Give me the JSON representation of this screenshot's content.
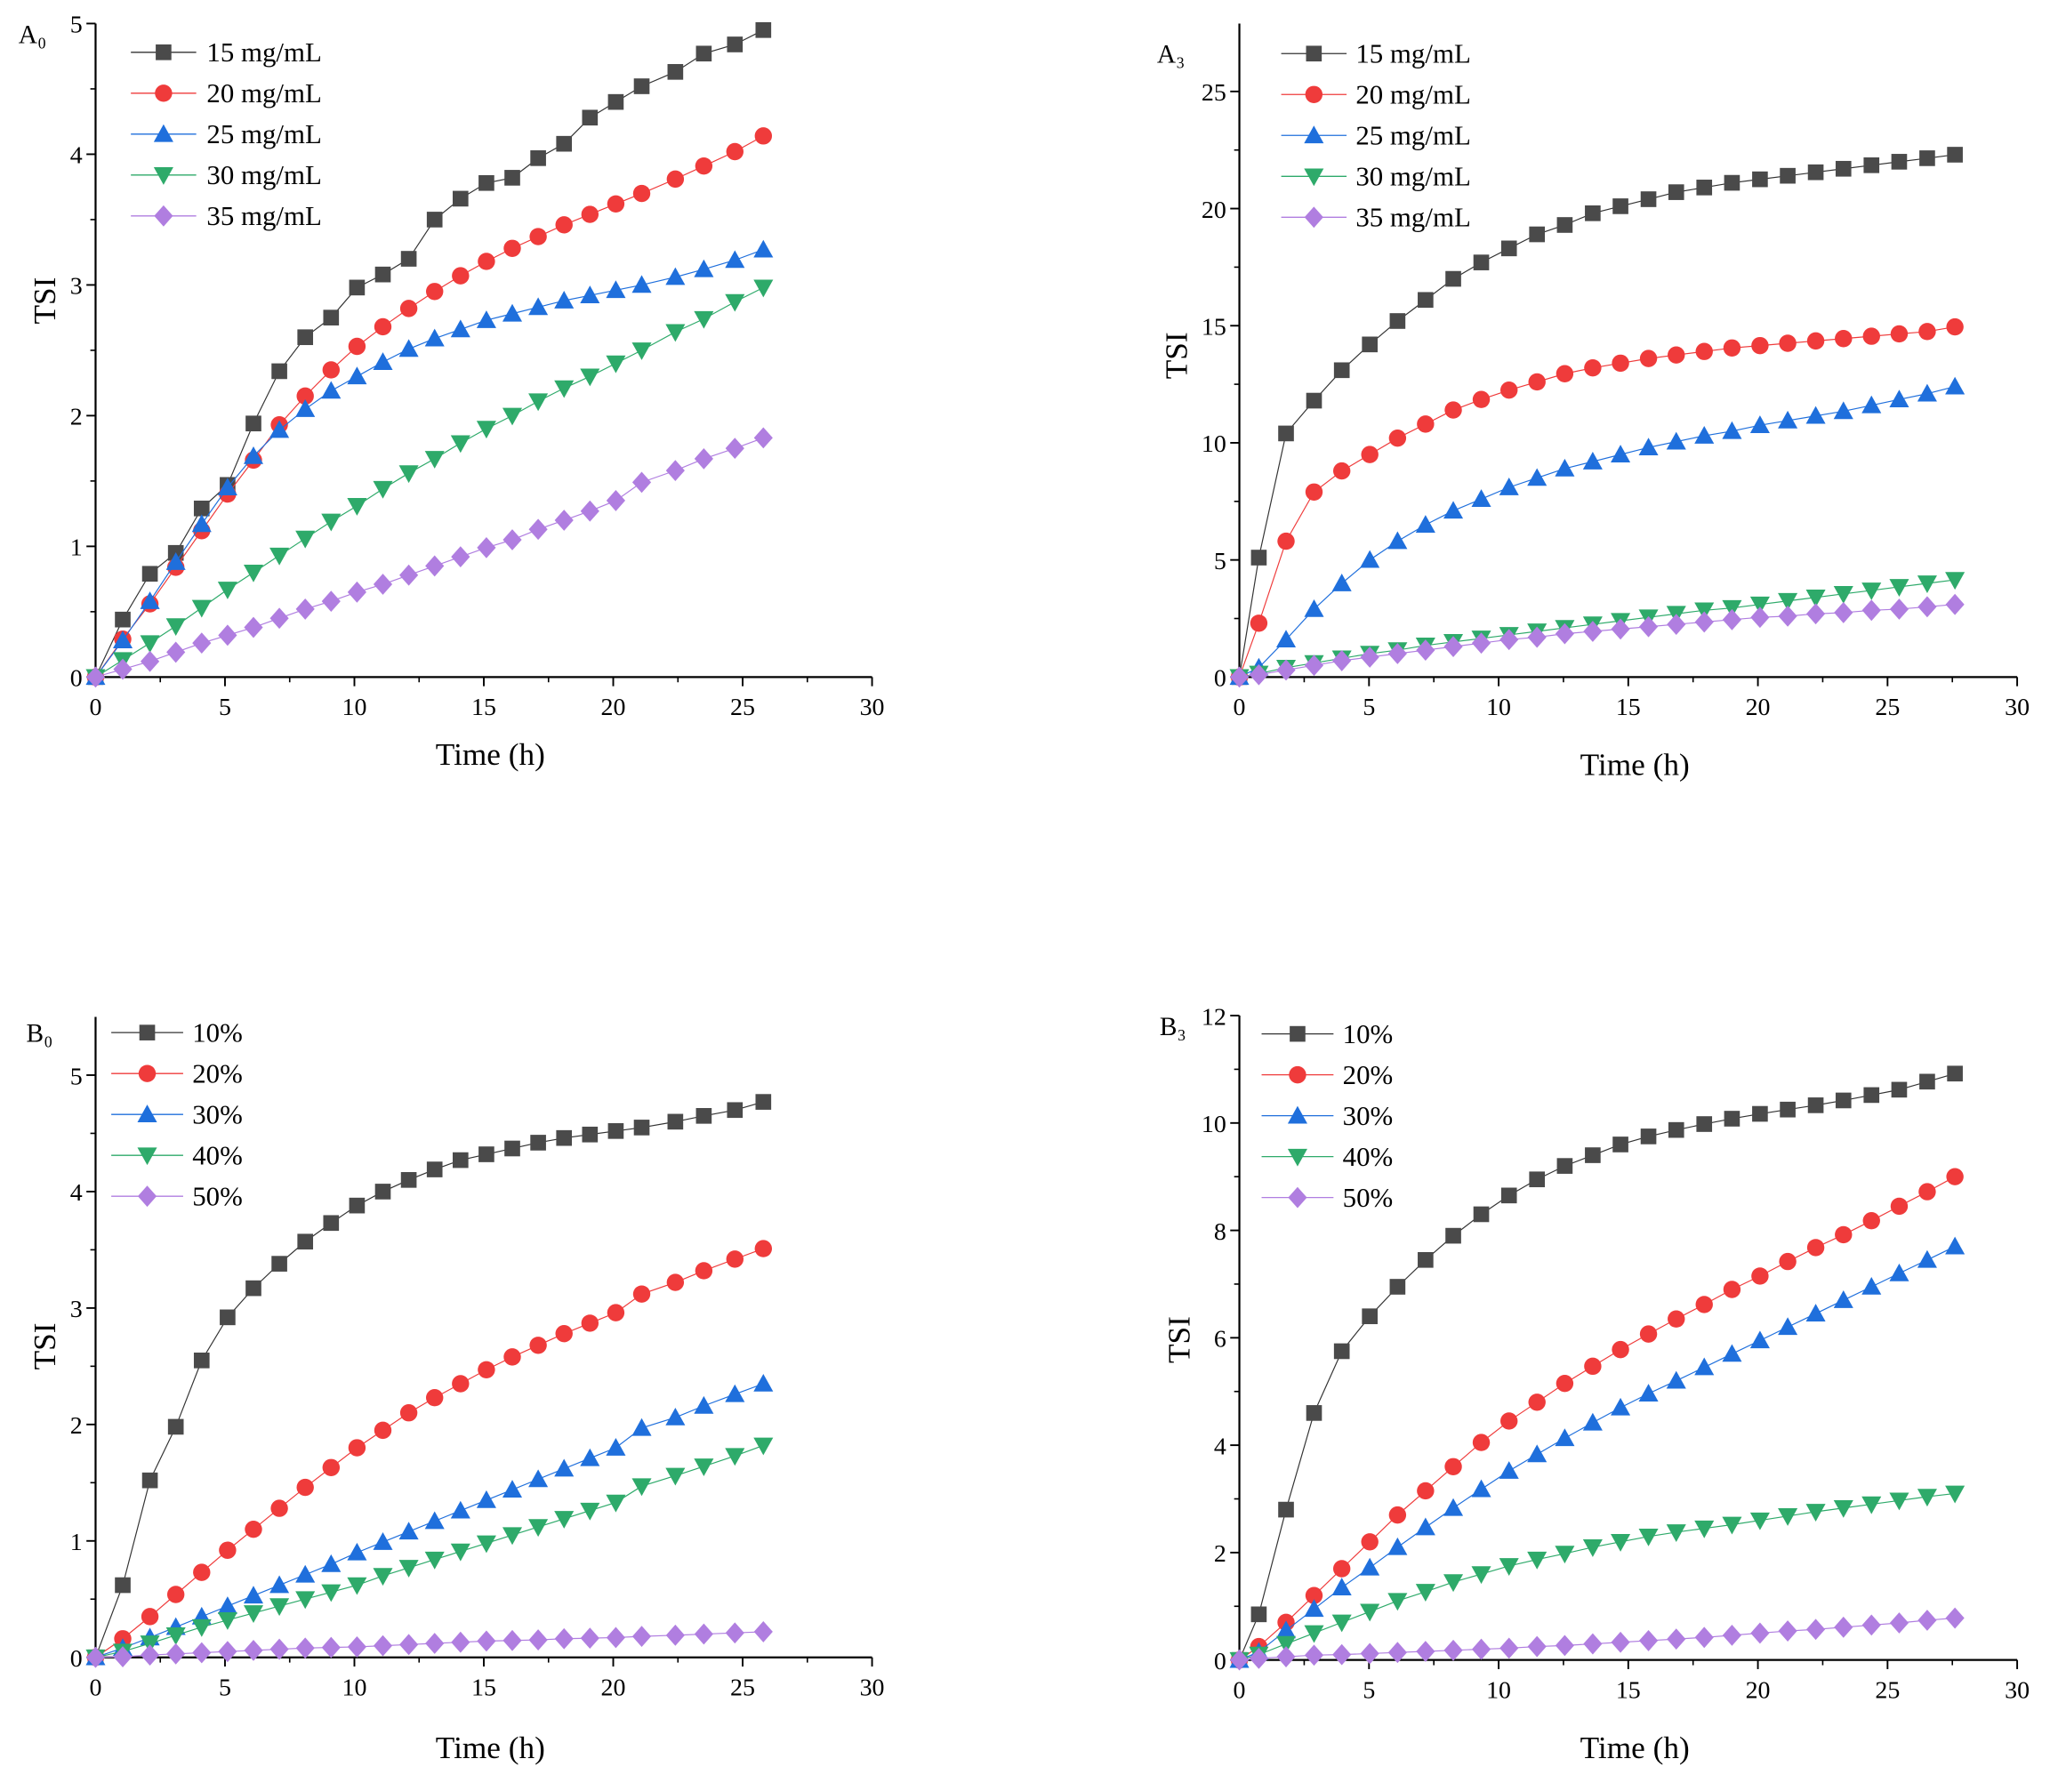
{
  "chart_data": [
    {
      "type": "line",
      "panel_label": "A₀",
      "xlabel": "Time (h)",
      "ylabel": "TSI",
      "xlim": [
        0,
        30
      ],
      "ylim": [
        0,
        5
      ],
      "xticks": [
        0,
        5,
        10,
        15,
        20,
        25,
        30
      ],
      "yticks": [
        0,
        1,
        2,
        3,
        4,
        5
      ],
      "legend_position": "top-left",
      "x": [
        0,
        1.05,
        2.1,
        3.1,
        4.1,
        5.1,
        6.1,
        7.1,
        8.1,
        9.1,
        10.1,
        11.1,
        12.1,
        13.1,
        14.1,
        15.1,
        16.1,
        17.1,
        18.1,
        19.1,
        20.1,
        21.1,
        22.4,
        23.5,
        24.7,
        25.8
      ],
      "series": [
        {
          "name": "15 mg/mL",
          "values": [
            0,
            0.44,
            0.79,
            0.95,
            1.29,
            1.47,
            1.94,
            2.34,
            2.6,
            2.75,
            2.98,
            3.08,
            3.2,
            3.5,
            3.66,
            3.78,
            3.82,
            3.97,
            4.08,
            4.28,
            4.4,
            4.52,
            4.63,
            4.77,
            4.84,
            4.95
          ]
        },
        {
          "name": "20 mg/mL",
          "values": [
            0,
            0.29,
            0.56,
            0.84,
            1.12,
            1.4,
            1.66,
            1.93,
            2.15,
            2.35,
            2.53,
            2.68,
            2.82,
            2.95,
            3.07,
            3.18,
            3.28,
            3.37,
            3.46,
            3.54,
            3.62,
            3.7,
            3.81,
            3.91,
            4.02,
            4.14
          ]
        },
        {
          "name": "25 mg/mL",
          "values": [
            0,
            0.28,
            0.58,
            0.88,
            1.17,
            1.45,
            1.69,
            1.89,
            2.05,
            2.19,
            2.3,
            2.41,
            2.51,
            2.59,
            2.66,
            2.73,
            2.78,
            2.83,
            2.88,
            2.92,
            2.96,
            3.0,
            3.06,
            3.12,
            3.19,
            3.27
          ]
        },
        {
          "name": "30 mg/mL",
          "values": [
            0,
            0.13,
            0.26,
            0.39,
            0.53,
            0.67,
            0.8,
            0.93,
            1.06,
            1.19,
            1.31,
            1.44,
            1.56,
            1.67,
            1.79,
            1.9,
            2.0,
            2.11,
            2.21,
            2.3,
            2.4,
            2.5,
            2.64,
            2.74,
            2.87,
            2.98
          ]
        },
        {
          "name": "35 mg/mL",
          "values": [
            0,
            0.06,
            0.12,
            0.19,
            0.26,
            0.32,
            0.38,
            0.45,
            0.52,
            0.58,
            0.65,
            0.71,
            0.78,
            0.85,
            0.92,
            0.99,
            1.05,
            1.13,
            1.2,
            1.27,
            1.35,
            1.49,
            1.58,
            1.67,
            1.75,
            1.83
          ]
        }
      ]
    },
    {
      "type": "line",
      "panel_label": "A₃",
      "xlabel": "Time (h)",
      "ylabel": "TSI",
      "xlim": [
        0,
        30
      ],
      "ylim": [
        0,
        27.9
      ],
      "xticks": [
        0,
        5,
        10,
        15,
        20,
        25,
        30
      ],
      "yticks": [
        0,
        5,
        10,
        15,
        20,
        25
      ],
      "legend_position": "top-left",
      "x": [
        0,
        0.75,
        1.8,
        2.88,
        3.95,
        5.03,
        6.1,
        7.18,
        8.25,
        9.33,
        10.4,
        11.48,
        12.55,
        13.63,
        14.7,
        15.78,
        16.85,
        17.93,
        19.0,
        20.08,
        21.15,
        22.23,
        23.3,
        24.38,
        25.45,
        26.53,
        27.6
      ],
      "series": [
        {
          "name": "15 mg/mL",
          "values": [
            0,
            5.1,
            10.4,
            11.8,
            13.1,
            14.2,
            15.2,
            16.1,
            17.0,
            17.7,
            18.3,
            18.9,
            19.3,
            19.8,
            20.1,
            20.4,
            20.7,
            20.9,
            21.1,
            21.25,
            21.4,
            21.55,
            21.7,
            21.85,
            22.0,
            22.15,
            22.3
          ]
        },
        {
          "name": "20 mg/mL",
          "values": [
            0,
            2.3,
            5.8,
            7.9,
            8.8,
            9.5,
            10.2,
            10.8,
            11.4,
            11.85,
            12.25,
            12.6,
            12.95,
            13.2,
            13.4,
            13.6,
            13.75,
            13.9,
            14.05,
            14.15,
            14.25,
            14.35,
            14.45,
            14.55,
            14.65,
            14.75,
            14.95
          ]
        },
        {
          "name": "25 mg/mL",
          "values": [
            0,
            0.4,
            1.6,
            2.9,
            4.0,
            5.0,
            5.8,
            6.5,
            7.1,
            7.6,
            8.1,
            8.5,
            8.9,
            9.2,
            9.5,
            9.8,
            10.05,
            10.3,
            10.5,
            10.75,
            10.95,
            11.15,
            11.35,
            11.6,
            11.85,
            12.1,
            12.4
          ]
        },
        {
          "name": "30 mg/mL",
          "values": [
            0,
            0.15,
            0.4,
            0.6,
            0.8,
            1.0,
            1.15,
            1.35,
            1.5,
            1.65,
            1.8,
            1.95,
            2.1,
            2.25,
            2.4,
            2.55,
            2.7,
            2.85,
            2.95,
            3.1,
            3.25,
            3.4,
            3.55,
            3.7,
            3.85,
            4.0,
            4.15
          ]
        },
        {
          "name": "35 mg/mL",
          "values": [
            0,
            0.1,
            0.3,
            0.5,
            0.7,
            0.85,
            1.0,
            1.15,
            1.3,
            1.45,
            1.6,
            1.7,
            1.85,
            1.95,
            2.05,
            2.15,
            2.25,
            2.35,
            2.45,
            2.55,
            2.6,
            2.7,
            2.75,
            2.85,
            2.9,
            3.0,
            3.1
          ]
        }
      ]
    },
    {
      "type": "line",
      "panel_label": "B₀",
      "xlabel": "Time (h)",
      "ylabel": "TSI",
      "xlim": [
        0,
        30
      ],
      "ylim": [
        0,
        5.5
      ],
      "xticks": [
        0,
        5,
        10,
        15,
        20,
        25,
        30
      ],
      "yticks": [
        0,
        1,
        2,
        3,
        4,
        5
      ],
      "legend_position": "top-left",
      "x": [
        0,
        1.05,
        2.1,
        3.1,
        4.1,
        5.1,
        6.1,
        7.1,
        8.1,
        9.1,
        10.1,
        11.1,
        12.1,
        13.1,
        14.1,
        15.1,
        16.1,
        17.1,
        18.1,
        19.1,
        20.1,
        21.1,
        22.4,
        23.5,
        24.7,
        25.8
      ],
      "series": [
        {
          "name": "10%",
          "values": [
            0,
            0.62,
            1.52,
            1.98,
            2.55,
            2.92,
            3.17,
            3.38,
            3.57,
            3.73,
            3.88,
            4.0,
            4.1,
            4.19,
            4.27,
            4.32,
            4.37,
            4.42,
            4.46,
            4.49,
            4.52,
            4.55,
            4.6,
            4.65,
            4.7,
            4.77
          ]
        },
        {
          "name": "20%",
          "values": [
            0,
            0.16,
            0.35,
            0.54,
            0.73,
            0.92,
            1.1,
            1.28,
            1.46,
            1.63,
            1.8,
            1.95,
            2.1,
            2.23,
            2.35,
            2.47,
            2.58,
            2.68,
            2.78,
            2.87,
            2.96,
            3.12,
            3.22,
            3.32,
            3.42,
            3.51
          ]
        },
        {
          "name": "30%",
          "values": [
            0,
            0.08,
            0.17,
            0.26,
            0.35,
            0.44,
            0.53,
            0.62,
            0.71,
            0.8,
            0.9,
            0.99,
            1.08,
            1.17,
            1.26,
            1.35,
            1.44,
            1.53,
            1.62,
            1.71,
            1.8,
            1.97,
            2.06,
            2.16,
            2.26,
            2.35
          ]
        },
        {
          "name": "40%",
          "values": [
            0,
            0.05,
            0.12,
            0.19,
            0.26,
            0.32,
            0.38,
            0.44,
            0.5,
            0.56,
            0.62,
            0.7,
            0.77,
            0.84,
            0.91,
            0.98,
            1.05,
            1.12,
            1.19,
            1.26,
            1.33,
            1.47,
            1.56,
            1.64,
            1.73,
            1.82
          ]
        },
        {
          "name": "50%",
          "values": [
            0,
            0.005,
            0.02,
            0.03,
            0.04,
            0.05,
            0.06,
            0.07,
            0.08,
            0.085,
            0.09,
            0.1,
            0.11,
            0.12,
            0.13,
            0.14,
            0.145,
            0.15,
            0.16,
            0.165,
            0.17,
            0.18,
            0.19,
            0.2,
            0.21,
            0.22
          ]
        }
      ]
    },
    {
      "type": "line",
      "panel_label": "B₃",
      "xlabel": "Time (h)",
      "ylabel": "TSI",
      "xlim": [
        0,
        30
      ],
      "ylim": [
        0,
        12
      ],
      "xticks": [
        0,
        5,
        10,
        15,
        20,
        25,
        30
      ],
      "yticks": [
        0,
        2,
        4,
        6,
        8,
        10,
        12
      ],
      "legend_position": "top-left",
      "x": [
        0,
        0.75,
        1.8,
        2.88,
        3.95,
        5.03,
        6.1,
        7.18,
        8.25,
        9.33,
        10.4,
        11.48,
        12.55,
        13.63,
        14.7,
        15.78,
        16.85,
        17.93,
        19.0,
        20.08,
        21.15,
        22.23,
        23.3,
        24.38,
        25.45,
        26.53,
        27.6
      ],
      "series": [
        {
          "name": "10%",
          "values": [
            0,
            0.85,
            2.8,
            4.6,
            5.75,
            6.4,
            6.95,
            7.45,
            7.9,
            8.3,
            8.65,
            8.95,
            9.2,
            9.4,
            9.6,
            9.75,
            9.87,
            9.98,
            10.08,
            10.17,
            10.25,
            10.33,
            10.42,
            10.52,
            10.62,
            10.77,
            10.92
          ]
        },
        {
          "name": "20%",
          "values": [
            0,
            0.25,
            0.7,
            1.2,
            1.7,
            2.2,
            2.7,
            3.15,
            3.6,
            4.05,
            4.45,
            4.8,
            5.15,
            5.47,
            5.78,
            6.07,
            6.35,
            6.62,
            6.9,
            7.15,
            7.42,
            7.68,
            7.92,
            8.18,
            8.45,
            8.72,
            9.0
          ]
        },
        {
          "name": "30%",
          "values": [
            0,
            0.15,
            0.55,
            0.95,
            1.35,
            1.72,
            2.1,
            2.47,
            2.83,
            3.18,
            3.52,
            3.83,
            4.13,
            4.42,
            4.7,
            4.96,
            5.2,
            5.45,
            5.7,
            5.95,
            6.2,
            6.45,
            6.7,
            6.95,
            7.2,
            7.45,
            7.7
          ]
        },
        {
          "name": "40%",
          "values": [
            0,
            0.1,
            0.3,
            0.5,
            0.7,
            0.9,
            1.1,
            1.27,
            1.45,
            1.6,
            1.75,
            1.87,
            1.98,
            2.1,
            2.2,
            2.3,
            2.38,
            2.45,
            2.52,
            2.6,
            2.68,
            2.76,
            2.83,
            2.9,
            2.97,
            3.04,
            3.1
          ]
        },
        {
          "name": "50%",
          "values": [
            0,
            0.03,
            0.06,
            0.09,
            0.1,
            0.12,
            0.14,
            0.16,
            0.18,
            0.2,
            0.22,
            0.25,
            0.27,
            0.3,
            0.33,
            0.36,
            0.39,
            0.42,
            0.46,
            0.5,
            0.54,
            0.57,
            0.61,
            0.65,
            0.69,
            0.74,
            0.78
          ]
        }
      ]
    }
  ],
  "series_styles": [
    {
      "marker": "square",
      "color": "#4a4a4a",
      "line": "#333333"
    },
    {
      "marker": "circle",
      "color": "#ef3b3b",
      "line": "#ef3b3b"
    },
    {
      "marker": "triangle-up",
      "color": "#1f6fdc",
      "line": "#1f6fdc"
    },
    {
      "marker": "triangle-down",
      "color": "#2eaa6a",
      "line": "#2eaa6a"
    },
    {
      "marker": "diamond",
      "color": "#b07ee0",
      "line": "#b07ee0"
    }
  ]
}
